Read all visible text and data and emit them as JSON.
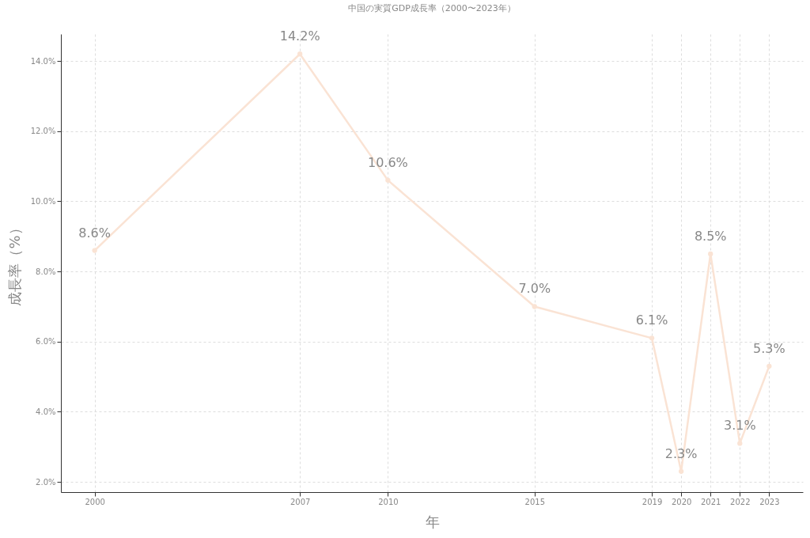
{
  "chart_data": {
    "type": "line",
    "title": "中国の実質GDP成長率（2000〜2023年）",
    "xlabel": "年",
    "ylabel": "成長率（%）",
    "x": [
      2000,
      2007,
      2010,
      2015,
      2019,
      2020,
      2021,
      2022,
      2023
    ],
    "series": [
      {
        "color": "#fae3d4",
        "values": [
          8.6,
          14.2,
          10.6,
          7.0,
          6.1,
          2.3,
          8.5,
          3.1,
          5.3
        ],
        "value_labels": [
          "8.6%",
          "14.2%",
          "10.6%",
          "7.0%",
          "6.1%",
          "2.3%",
          "8.5%",
          "3.1%",
          "5.3%"
        ]
      }
    ],
    "xlim": [
      1998.85,
      2024.15
    ],
    "xticks": [
      2000,
      2007,
      2010,
      2015,
      2019,
      2020,
      2021,
      2022,
      2023
    ],
    "ylim": [
      1.71,
      14.77
    ],
    "yticks": [
      {
        "value": 2,
        "label": "2.0%"
      },
      {
        "value": 4,
        "label": "4.0%"
      },
      {
        "value": 6,
        "label": "6.0%"
      },
      {
        "value": 8,
        "label": "8.0%"
      },
      {
        "value": 10,
        "label": "10.0%"
      },
      {
        "value": 12,
        "label": "12.0%"
      },
      {
        "value": 14,
        "label": "14.0%"
      }
    ],
    "grid": true,
    "marker": "circle",
    "line_style": "solid"
  }
}
